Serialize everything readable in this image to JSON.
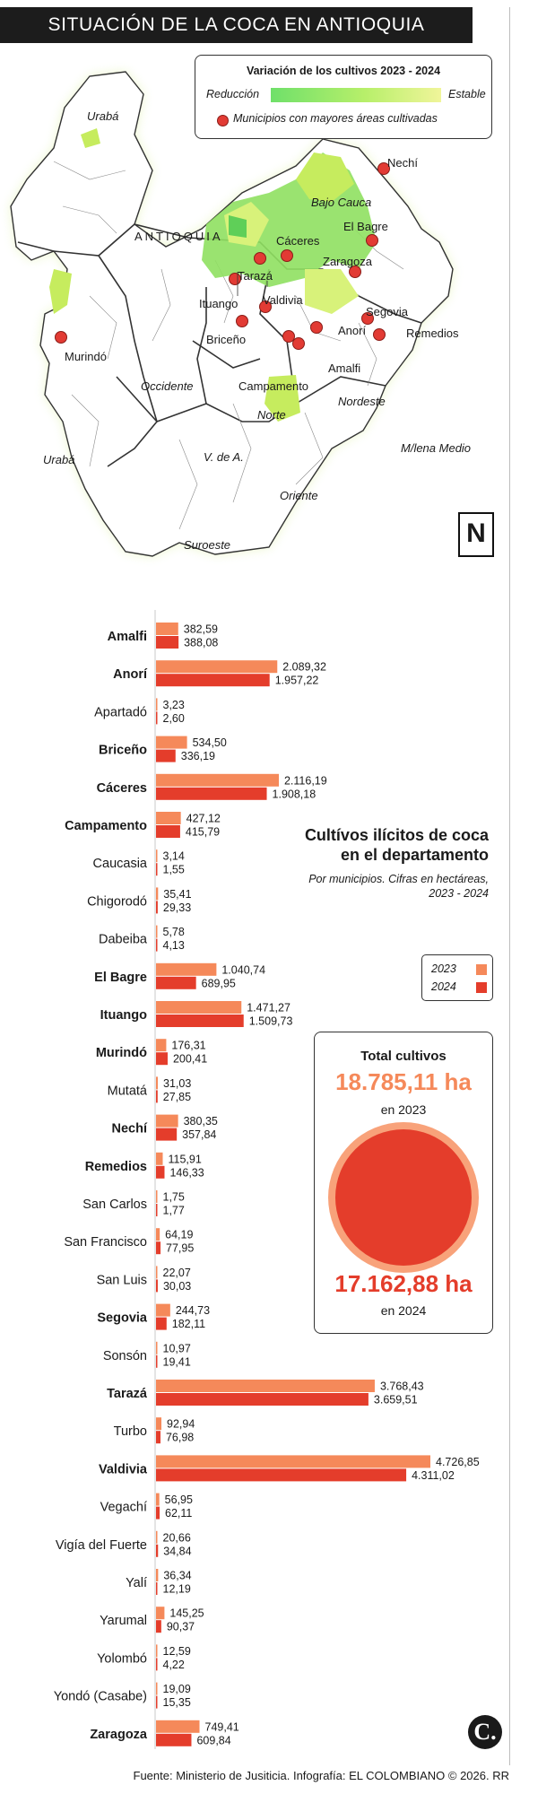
{
  "header": {
    "title": "SITUACIÓN DE LA COCA EN ANTIOQUIA"
  },
  "legend": {
    "title": "Variación de los cultivos 2023 - 2024",
    "reduction": "Reducción",
    "stable": "Estable",
    "municipalities": "Municipios con mayores áreas cultivadas"
  },
  "map": {
    "department": "ANTIOQUIA",
    "compass": "N",
    "regions": [
      "Urabá",
      "Bajo Cauca",
      "Occidente",
      "Norte",
      "Nordeste",
      "M/lena Medio",
      "V. de A.",
      "Oriente",
      "Suroeste",
      "Urabá"
    ],
    "municipalities": [
      "Nechí",
      "El Bagre",
      "Cáceres",
      "Zaragoza",
      "Tarazá",
      "Ituango",
      "Valdivia",
      "Segovia",
      "Anorí",
      "Remedios",
      "Briceño",
      "Amalfi",
      "Campamento",
      "Murindó"
    ]
  },
  "chart_data": {
    "type": "bar",
    "title": "Cultívos ilícitos de coca en el departamento",
    "subtitle": "Por municipios. Cifras en hectáreas, 2023 - 2024",
    "categories": [
      "Amalfi",
      "Anorí",
      "Apartadó",
      "Briceño",
      "Cáceres",
      "Campamento",
      "Caucasia",
      "Chigorodó",
      "Dabeiba",
      "El Bagre",
      "Ituango",
      "Murindó",
      "Mutatá",
      "Nechí",
      "Remedios",
      "San Carlos",
      "San Francisco",
      "San Luis",
      "Segovia",
      "Sonsón",
      "Tarazá",
      "Turbo",
      "Valdivia",
      "Vegachí",
      "Vigía del Fuerte",
      "Yalí",
      "Yarumal",
      "Yolombó",
      "Yondó (Casabe)",
      "Zaragoza"
    ],
    "bold_categories": [
      "Amalfi",
      "Anorí",
      "Briceño",
      "Cáceres",
      "Campamento",
      "El Bagre",
      "Ituango",
      "Murindó",
      "Nechí",
      "Remedios",
      "Segovia",
      "Tarazá",
      "Valdivia",
      "Zaragoza"
    ],
    "series": [
      {
        "name": "2023",
        "color": "#f5895a",
        "values": [
          382.59,
          2089.32,
          3.23,
          534.5,
          2116.19,
          427.12,
          3.14,
          35.41,
          5.78,
          1040.74,
          1471.27,
          176.31,
          31.03,
          380.35,
          115.91,
          1.75,
          64.19,
          22.07,
          244.73,
          10.97,
          3768.43,
          92.94,
          4726.85,
          56.95,
          20.66,
          36.34,
          145.25,
          12.59,
          19.09,
          749.41
        ],
        "labels": [
          "382,59",
          "2.089,32",
          "3,23",
          "534,50",
          "2.116,19",
          "427,12",
          "3,14",
          "35,41",
          "5,78",
          "1.040,74",
          "1.471,27",
          "176,31",
          "31,03",
          "380,35",
          "115,91",
          "1,75",
          "64,19",
          "22,07",
          "244,73",
          "10,97",
          "3.768,43",
          "92,94",
          "4.726,85",
          "56,95",
          "20,66",
          "36,34",
          "145,25",
          "12,59",
          "19,09",
          "749,41"
        ]
      },
      {
        "name": "2024",
        "color": "#e43d2b",
        "values": [
          388.08,
          1957.22,
          2.6,
          336.19,
          1908.18,
          415.79,
          1.55,
          29.33,
          4.13,
          689.95,
          1509.73,
          200.41,
          27.85,
          357.84,
          146.33,
          1.77,
          77.95,
          30.03,
          182.11,
          19.41,
          3659.51,
          76.98,
          4311.02,
          62.11,
          34.84,
          12.19,
          90.37,
          4.22,
          15.35,
          609.84
        ],
        "labels": [
          "388,08",
          "1.957,22",
          "2,60",
          "336,19",
          "1.908,18",
          "415,79",
          "1,55",
          "29,33",
          "4,13",
          "689,95",
          "1.509,73",
          "200,41",
          "27,85",
          "357,84",
          "146,33",
          "1,77",
          "77,95",
          "30,03",
          "182,11",
          "19,41",
          "3.659,51",
          "76,98",
          "4.311,02",
          "62,11",
          "34,84",
          "12,19",
          "90,37",
          "4,22",
          "15,35",
          "609,84"
        ]
      }
    ],
    "xlim": [
      0,
      4726.85
    ],
    "grid": false
  },
  "totals": {
    "title": "Total cultivos",
    "value_2023": "18.785,11 ha",
    "caption_2023": "en 2023",
    "value_2024": "17.162,88 ha",
    "caption_2024": "en 2024"
  },
  "year_legend": {
    "y2023": "2023",
    "y2024": "2024"
  },
  "footer": {
    "logo": "C.",
    "source": "Fuente: Ministerio de Jusiticia. Infografía: EL COLOMBIANO © 2026. RR"
  }
}
